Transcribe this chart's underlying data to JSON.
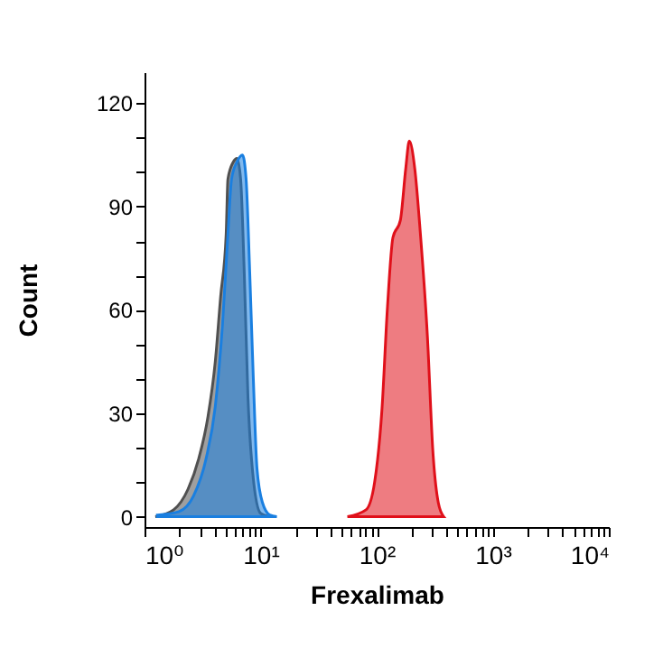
{
  "chart_data": {
    "type": "area",
    "xlabel": "Frexalimab",
    "ylabel": "Count",
    "log": "x",
    "xlim": [
      1,
      10000
    ],
    "ylim": [
      -3,
      129
    ],
    "xticks": [
      {
        "value": 1,
        "label": "10⁰"
      },
      {
        "value": 2,
        "label": null
      },
      {
        "value": 3,
        "label": null
      },
      {
        "value": 4,
        "label": null
      },
      {
        "value": 5,
        "label": null
      },
      {
        "value": 6,
        "label": null
      },
      {
        "value": 7,
        "label": null
      },
      {
        "value": 8,
        "label": null
      },
      {
        "value": 9,
        "label": null
      },
      {
        "value": 10,
        "label": "10¹"
      },
      {
        "value": 20,
        "label": null
      },
      {
        "value": 30,
        "label": null
      },
      {
        "value": 40,
        "label": null
      },
      {
        "value": 50,
        "label": null
      },
      {
        "value": 60,
        "label": null
      },
      {
        "value": 70,
        "label": null
      },
      {
        "value": 80,
        "label": null
      },
      {
        "value": 90,
        "label": null
      },
      {
        "value": 100,
        "label": "10²"
      },
      {
        "value": 200,
        "label": null
      },
      {
        "value": 300,
        "label": null
      },
      {
        "value": 400,
        "label": null
      },
      {
        "value": 500,
        "label": null
      },
      {
        "value": 600,
        "label": null
      },
      {
        "value": 700,
        "label": null
      },
      {
        "value": 800,
        "label": null
      },
      {
        "value": 900,
        "label": null
      },
      {
        "value": 1000,
        "label": "10³"
      },
      {
        "value": 2000,
        "label": null
      },
      {
        "value": 3000,
        "label": null
      },
      {
        "value": 4000,
        "label": null
      },
      {
        "value": 5000,
        "label": null
      },
      {
        "value": 6000,
        "label": null
      },
      {
        "value": 7000,
        "label": null
      },
      {
        "value": 8000,
        "label": null
      },
      {
        "value": 9000,
        "label": null
      },
      {
        "value": 10000,
        "label": "10⁴"
      }
    ],
    "yticks": [
      0,
      {
        "value": 10,
        "label": null
      },
      {
        "value": 20,
        "label": null
      },
      30,
      {
        "value": 40,
        "label": null
      },
      {
        "value": 50,
        "label": null
      },
      60,
      {
        "value": 70,
        "label": null
      },
      {
        "value": 80,
        "label": null
      },
      90,
      {
        "value": 100,
        "label": null
      },
      {
        "value": 110,
        "label": null
      },
      120
    ],
    "series": [
      {
        "color": "#505050",
        "x": [
          1.24,
          1.78,
          2.37,
          2.94,
          3.52,
          4.07,
          4.53,
          5.05,
          5.23,
          5.83,
          6.26,
          6.73,
          7.23,
          7.78,
          8.66,
          10,
          12.0
        ],
        "values": [
          0,
          2,
          8,
          17,
          29,
          45,
          64,
          82,
          98,
          103,
          104,
          98,
          71,
          35,
          11,
          1,
          0
        ]
      },
      {
        "color": "#1a7fe0",
        "x": [
          1.29,
          1.98,
          2.64,
          3.4,
          4.07,
          4.7,
          5.23,
          5.62,
          6.26,
          6.98,
          7.5,
          8.06,
          8.66,
          9.31,
          10.4,
          12.0,
          13.8
        ],
        "values": [
          0.5,
          1.5,
          6,
          17,
          32,
          56,
          82,
          98,
          103,
          105,
          98,
          71,
          40,
          14,
          4,
          0.5,
          0
        ]
      },
      {
        "color": "#e0101a",
        "x": [
          56,
          81,
          96,
          111,
          124,
          138,
          160,
          178,
          191,
          213,
          237,
          274,
          305,
          340,
          378
        ],
        "values": [
          0,
          2,
          10,
          31,
          61,
          81,
          86,
          101,
          109,
          101,
          83,
          52,
          19,
          4,
          0
        ]
      }
    ]
  }
}
